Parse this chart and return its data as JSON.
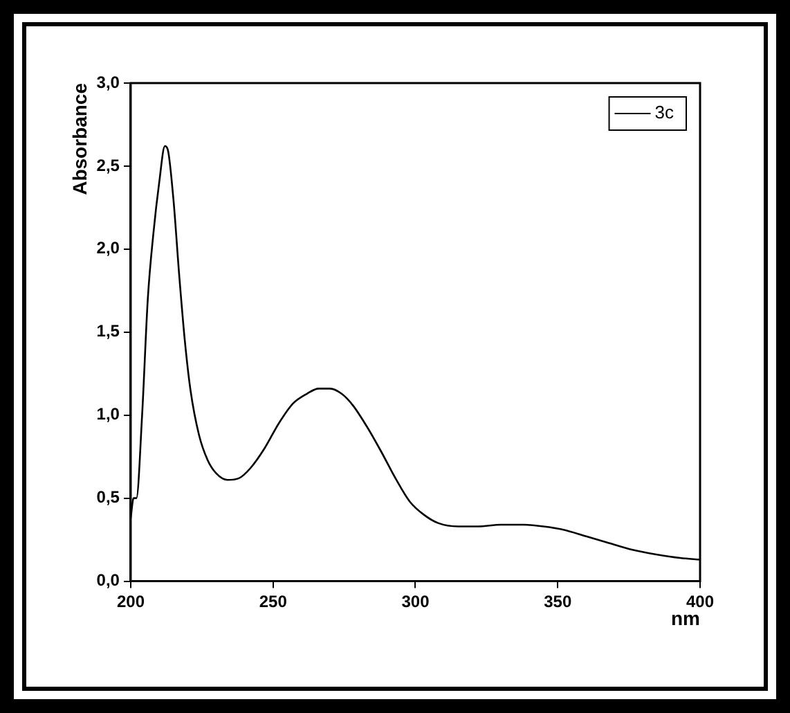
{
  "chart_data": {
    "type": "line",
    "xlabel": "nm",
    "ylabel": "Absorbance",
    "x": [
      200,
      201,
      202,
      204,
      206,
      208,
      210,
      212,
      213,
      215,
      217,
      219,
      221,
      224,
      227,
      230,
      234,
      238,
      242,
      247,
      252,
      257,
      262,
      266,
      270,
      274,
      278,
      283,
      288,
      293,
      298,
      303,
      308,
      315,
      322,
      330,
      338,
      345,
      352,
      360,
      368,
      376,
      385,
      393,
      400
    ],
    "series": [
      {
        "name": "3c",
        "color": "#000000",
        "values": [
          0.38,
          0.5,
          0.5,
          1.0,
          1.7,
          2.1,
          2.4,
          2.62,
          2.6,
          2.3,
          1.85,
          1.45,
          1.15,
          0.88,
          0.73,
          0.65,
          0.61,
          0.62,
          0.68,
          0.8,
          0.95,
          1.07,
          1.13,
          1.16,
          1.16,
          1.13,
          1.06,
          0.93,
          0.78,
          0.62,
          0.48,
          0.4,
          0.35,
          0.33,
          0.33,
          0.34,
          0.34,
          0.33,
          0.31,
          0.27,
          0.23,
          0.19,
          0.16,
          0.14,
          0.13
        ]
      }
    ],
    "xlim": [
      200,
      400
    ],
    "xticks": [
      200,
      250,
      300,
      350,
      400
    ],
    "ylim": [
      0,
      3
    ],
    "yticks": [
      {
        "value": 0,
        "label": "0,0"
      },
      {
        "value": 0.5,
        "label": "0,5"
      },
      {
        "value": 1,
        "label": "1,0"
      },
      {
        "value": 1.5,
        "label": "1,5"
      },
      {
        "value": 2,
        "label": "2,0"
      },
      {
        "value": 2.5,
        "label": "2,5"
      },
      {
        "value": 3,
        "label": "3,0"
      }
    ],
    "grid": false,
    "legend": "top right",
    "marker": "none",
    "line_style": "solid"
  }
}
